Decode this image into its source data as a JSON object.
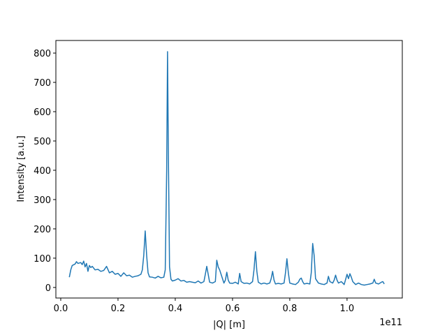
{
  "chart_data": {
    "type": "line",
    "xlabel": "|Q| [m]",
    "ylabel": "Intensity [a.u.]",
    "x_offset_text": "1e11",
    "x": [
      0.03,
      0.035,
      0.04,
      0.05,
      0.055,
      0.06,
      0.07,
      0.075,
      0.08,
      0.085,
      0.09,
      0.095,
      0.1,
      0.105,
      0.11,
      0.12,
      0.13,
      0.14,
      0.15,
      0.16,
      0.17,
      0.18,
      0.19,
      0.2,
      0.21,
      0.22,
      0.23,
      0.24,
      0.25,
      0.26,
      0.27,
      0.28,
      0.285,
      0.29,
      0.295,
      0.3,
      0.305,
      0.31,
      0.32,
      0.33,
      0.34,
      0.35,
      0.36,
      0.365,
      0.37,
      0.373,
      0.376,
      0.38,
      0.385,
      0.39,
      0.4,
      0.41,
      0.42,
      0.43,
      0.44,
      0.45,
      0.46,
      0.47,
      0.48,
      0.49,
      0.5,
      0.505,
      0.51,
      0.515,
      0.52,
      0.53,
      0.54,
      0.545,
      0.55,
      0.555,
      0.56,
      0.57,
      0.575,
      0.58,
      0.585,
      0.59,
      0.6,
      0.61,
      0.62,
      0.625,
      0.63,
      0.64,
      0.65,
      0.66,
      0.67,
      0.675,
      0.68,
      0.685,
      0.69,
      0.7,
      0.71,
      0.72,
      0.73,
      0.735,
      0.74,
      0.745,
      0.75,
      0.76,
      0.77,
      0.78,
      0.785,
      0.79,
      0.795,
      0.8,
      0.81,
      0.82,
      0.83,
      0.835,
      0.84,
      0.845,
      0.85,
      0.86,
      0.87,
      0.875,
      0.88,
      0.885,
      0.89,
      0.9,
      0.91,
      0.92,
      0.93,
      0.935,
      0.94,
      0.95,
      0.955,
      0.96,
      0.965,
      0.97,
      0.98,
      0.99,
      1.0,
      1.005,
      1.01,
      1.015,
      1.02,
      1.03,
      1.04,
      1.05,
      1.06,
      1.07,
      1.08,
      1.09,
      1.095,
      1.1,
      1.11,
      1.12,
      1.125,
      1.13
    ],
    "series": [
      {
        "name": "intensity",
        "color": "#1f77b4",
        "values": [
          35,
          60,
          75,
          80,
          88,
          82,
          85,
          78,
          90,
          70,
          82,
          55,
          75,
          68,
          72,
          60,
          62,
          55,
          58,
          72,
          50,
          55,
          45,
          48,
          38,
          50,
          40,
          42,
          35,
          38,
          40,
          45,
          60,
          110,
          193,
          110,
          50,
          36,
          35,
          32,
          38,
          33,
          35,
          60,
          400,
          805,
          450,
          70,
          28,
          22,
          25,
          30,
          22,
          24,
          18,
          20,
          18,
          16,
          22,
          15,
          20,
          45,
          72,
          45,
          18,
          15,
          20,
          93,
          70,
          60,
          45,
          15,
          25,
          52,
          25,
          15,
          14,
          18,
          12,
          48,
          20,
          14,
          15,
          12,
          20,
          60,
          122,
          55,
          18,
          12,
          15,
          12,
          15,
          30,
          55,
          25,
          12,
          14,
          12,
          15,
          50,
          98,
          50,
          15,
          12,
          10,
          18,
          28,
          32,
          20,
          12,
          14,
          12,
          50,
          150,
          110,
          30,
          15,
          12,
          10,
          15,
          38,
          20,
          15,
          25,
          42,
          25,
          15,
          20,
          10,
          45,
          30,
          47,
          35,
          20,
          10,
          15,
          10,
          8,
          10,
          12,
          15,
          28,
          15,
          12,
          18,
          20,
          12
        ]
      }
    ],
    "xlim": [
      -0.017,
      1.193
    ],
    "xticks": [
      {
        "value": 0,
        "label": "0.0"
      },
      0.2,
      0.4,
      0.6,
      0.8,
      {
        "value": 1,
        "label": "1.0"
      }
    ],
    "ylim": [
      -36,
      843
    ],
    "yticks": [
      0,
      100,
      200,
      300,
      400,
      500,
      600,
      700,
      800
    ],
    "grid": false
  }
}
